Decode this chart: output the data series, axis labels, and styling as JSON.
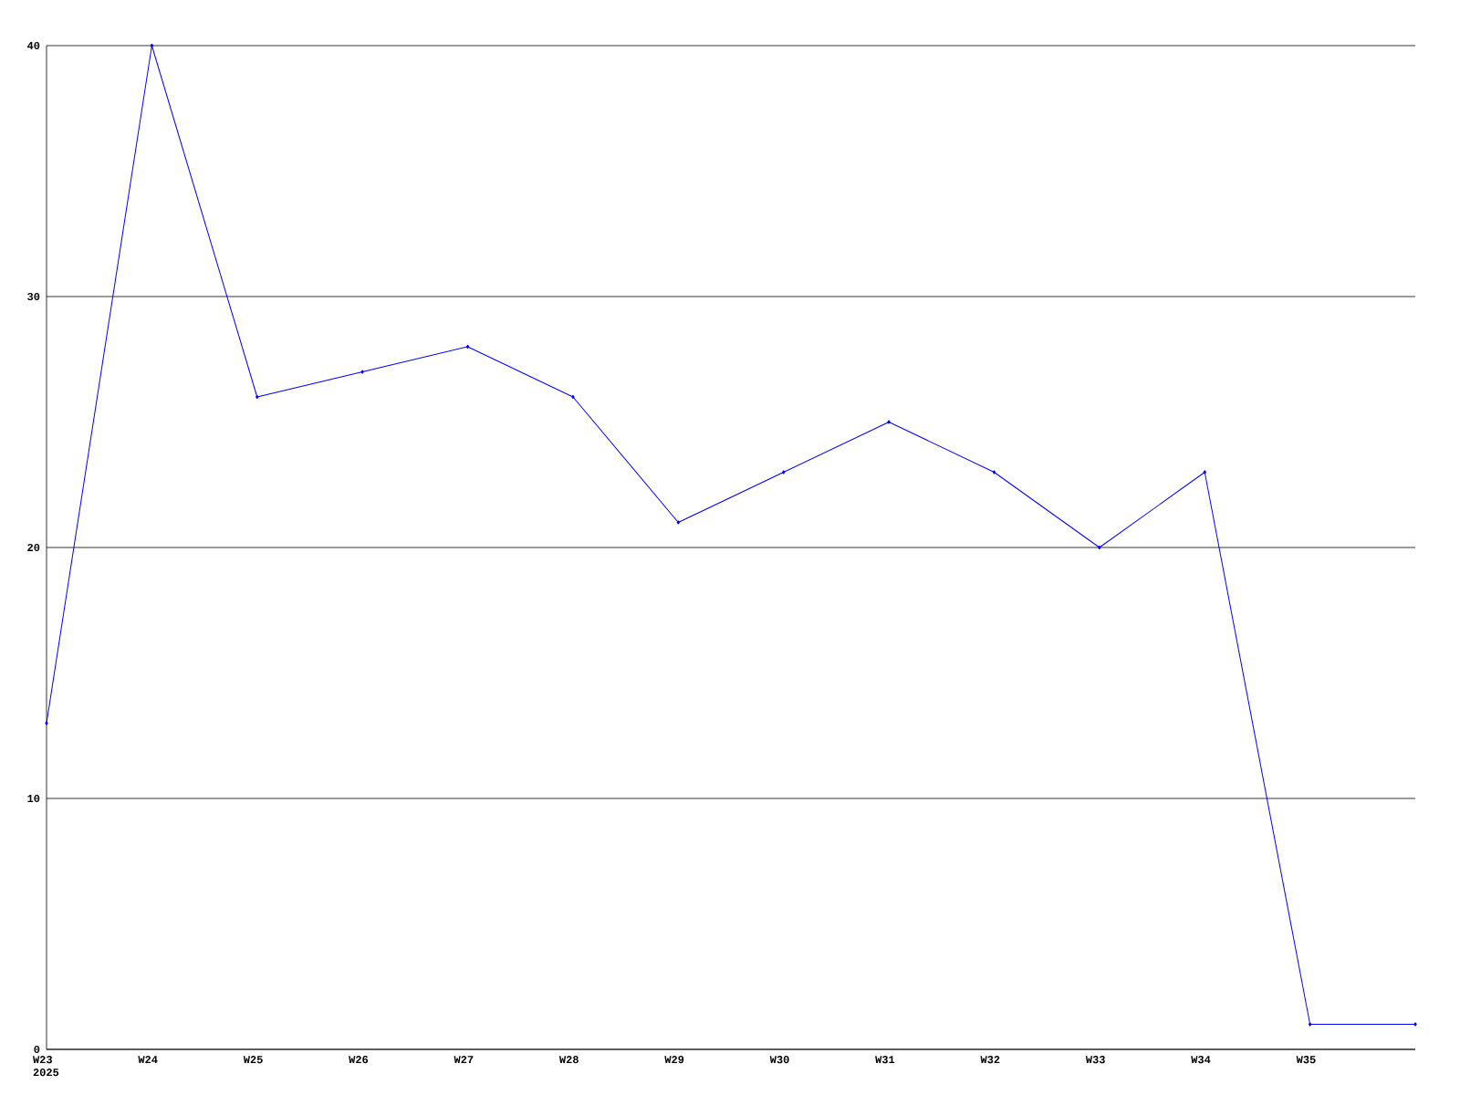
{
  "chart_data": {
    "type": "line",
    "categories": [
      "W23 2025",
      "W24",
      "W25",
      "W26",
      "W27",
      "W28",
      "W29",
      "W30",
      "W31",
      "W32",
      "W33",
      "W34",
      "W35",
      null
    ],
    "series": [
      {
        "color": "#0000ff",
        "values": [
          13,
          40,
          26,
          27,
          28,
          26,
          21,
          23,
          25,
          23,
          20,
          23,
          1,
          1
        ]
      }
    ],
    "ylim": [
      0,
      40
    ],
    "yticks": [
      0,
      10,
      20,
      30,
      40
    ],
    "grid": "y",
    "marker": "diamond",
    "line_style": "solid"
  }
}
